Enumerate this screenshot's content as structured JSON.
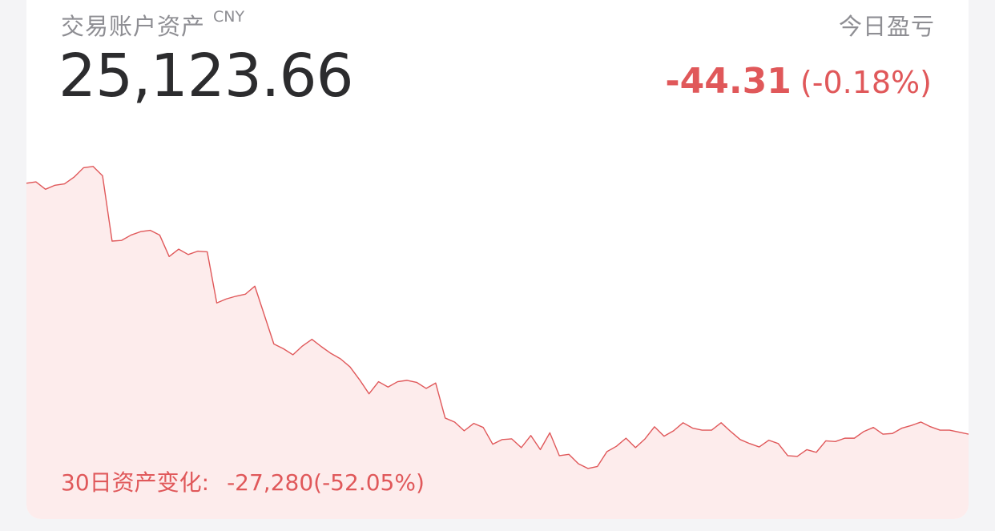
{
  "account": {
    "title": "交易账户资产",
    "currency": "CNY",
    "balance": "25,123.66"
  },
  "today_pnl": {
    "label": "今日盈亏",
    "value": "-44.31",
    "percent": "(-0.18%)"
  },
  "period_change": {
    "label": "30日资产变化:",
    "value": "-27,280(-52.05%)"
  },
  "colors": {
    "loss_red": "#e0585a",
    "area_fill": "#fdecec",
    "muted_text": "#8e8e93",
    "primary_text": "#2c2c2e"
  },
  "chart_data": {
    "type": "area",
    "series": [
      {
        "values": [
          46.1,
          46.3,
          45.2,
          45.8,
          46.0,
          47.0,
          48.4,
          48.6,
          47.2,
          37.5,
          37.6,
          38.4,
          38.9,
          39.1,
          38.4,
          35.2,
          36.3,
          35.5,
          36.0,
          35.9,
          28.3,
          28.9,
          29.3,
          29.6,
          30.8,
          26.5,
          22.2,
          21.5,
          20.6,
          21.9,
          22.9,
          21.8,
          20.8,
          20.0,
          18.8,
          16.9,
          14.8,
          16.6,
          15.8,
          16.6,
          16.8,
          16.5,
          15.6,
          16.4,
          11.2,
          10.6,
          9.3,
          10.4,
          9.8,
          7.3,
          8.0,
          8.1,
          6.8,
          8.6,
          6.5,
          9.0,
          5.6,
          5.8,
          4.4,
          3.7,
          4.0,
          6.2,
          7.0,
          8.2,
          6.8,
          8.1,
          9.9,
          8.5,
          9.3,
          10.5,
          9.7,
          9.4,
          9.4,
          10.5,
          9.2,
          8.0,
          7.4,
          6.9,
          7.9,
          7.4,
          5.6,
          5.5,
          6.5,
          6.1,
          7.8,
          7.7,
          8.2,
          8.2,
          9.2,
          9.8,
          8.8,
          8.9,
          9.7,
          10.1,
          10.6,
          9.9,
          9.4,
          9.4,
          9.1,
          8.8
        ]
      }
    ],
    "ylim": [
      0,
      50
    ],
    "grid": false
  }
}
